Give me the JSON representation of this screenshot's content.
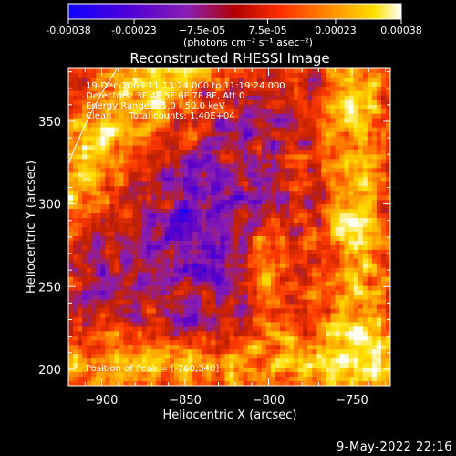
{
  "chart_data": {
    "type": "heatmap",
    "title": "Reconstructed RHESSI Image",
    "xlabel": "Heliocentric X (arcsec)",
    "ylabel": "Heliocentric Y (arcsec)",
    "xlim": [
      -920,
      -727
    ],
    "ylim": [
      190,
      382
    ],
    "x_ticks": [
      -900,
      -850,
      -800,
      -750
    ],
    "y_ticks": [
      200,
      250,
      300,
      350
    ],
    "colorbar": {
      "range": [
        -0.00038,
        0.00038
      ],
      "tick_values": [
        -0.00038,
        -0.00023,
        -7.5e-05,
        7.5e-05,
        0.00023,
        0.00038
      ],
      "tick_labels": [
        "-0.00038",
        "-0.00023",
        "−7.5e-05",
        "7.5e-05",
        "0.00023",
        "0.00038"
      ],
      "units_label": "(photons cm⁻² s⁻¹ asec⁻²)",
      "colors": [
        "#1000ff",
        "#5a00c8",
        "#8a1fb0",
        "#c02000",
        "#ff3a00",
        "#ff9800",
        "#ffe000",
        "#ffffff"
      ]
    },
    "annotations": [
      "19-Dec-2009 11:13:24.000 to 11:19:24.000",
      "Detectors: 3F 4F 5F 6F 7F 8F, Att 0",
      "Energy Range: 25.0 - 50.0 keV",
      "Clean      Total counts: 1.40E+04",
      "Position of Peak = [-760,340]"
    ],
    "peak": {
      "x": -760,
      "y": 340
    }
  },
  "footer_timestamp": "9-May-2022 22:16"
}
